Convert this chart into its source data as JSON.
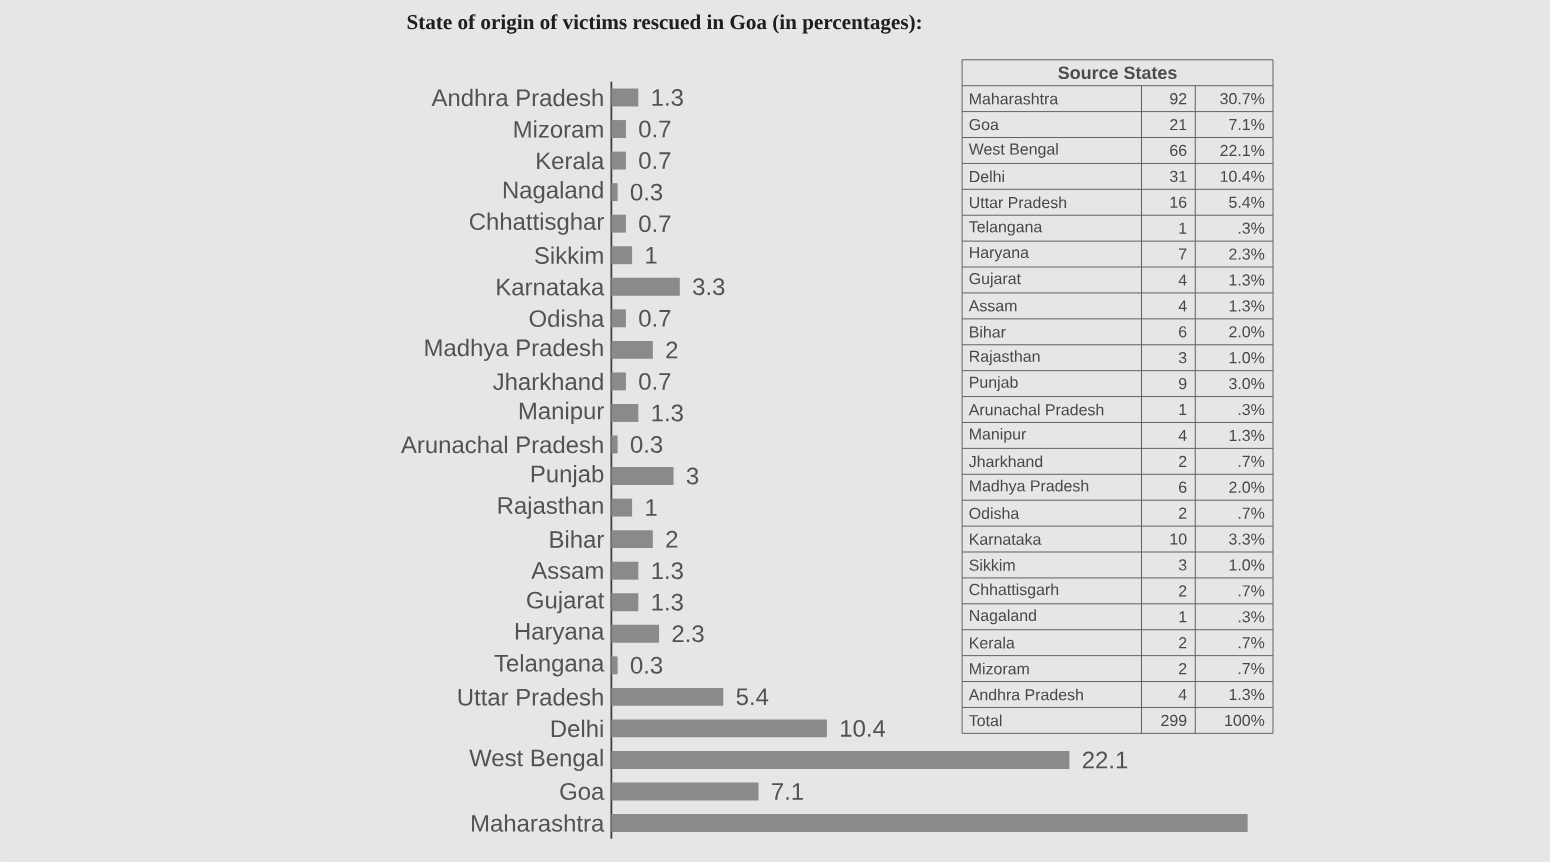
{
  "chart_data": [
    {
      "type": "bar",
      "orientation": "horizontal",
      "title": "State of origin of victims rescued in Goa (in percentages):",
      "categories": [
        "Andhra Pradesh",
        "Mizoram",
        "Kerala",
        "Nagaland",
        "Chhattisghar",
        "Sikkim",
        "Karnataka",
        "Odisha",
        "Madhya Pradesh",
        "Jharkhand",
        "Manipur",
        "Arunachal Pradesh",
        "Punjab",
        "Rajasthan",
        "Bihar",
        "Assam",
        "Gujarat",
        "Haryana",
        "Telangana",
        "Uttar Pradesh",
        "Delhi",
        "West Bengal",
        "Goa",
        "Maharashtra"
      ],
      "values": [
        1.3,
        0.7,
        0.7,
        0.3,
        0.7,
        1,
        3.3,
        0.7,
        2,
        0.7,
        1.3,
        0.3,
        3,
        1,
        2,
        1.3,
        1.3,
        2.3,
        0.3,
        5.4,
        10.4,
        22.1,
        7.1,
        30.7
      ],
      "value_labels": [
        "1.3",
        "0.7",
        "0.7",
        "0.3",
        "0.7",
        "1",
        "3.3",
        "0.7",
        "2",
        "0.7",
        "1.3",
        "0.3",
        "3",
        "1",
        "2",
        "1.3",
        "1.3",
        "2.3",
        "0.3",
        "5.4",
        "10.4",
        "22.1",
        "7.1",
        null
      ],
      "color": "#8a8a8a",
      "tick_labels": "y"
    },
    {
      "type": "other",
      "title": "Source States",
      "data_labels": true,
      "categories": [
        "Maharashtra",
        "Goa",
        "West Bengal",
        "Delhi",
        "Uttar Pradesh",
        "Telangana",
        "Haryana",
        "Gujarat",
        "Assam",
        "Bihar",
        "Rajasthan",
        "Punjab",
        "Arunachal Pradesh",
        "Manipur",
        "Jharkhand",
        "Madhya Pradesh",
        "Odisha",
        "Karnataka",
        "Sikkim",
        "Chhattisgarh",
        "Nagaland",
        "Kerala",
        "Mizoram",
        "Andhra Pradesh",
        "Total"
      ],
      "series": [
        {
          "values": [
            92,
            21,
            66,
            31,
            16,
            1,
            7,
            4,
            4,
            6,
            3,
            9,
            1,
            4,
            2,
            6,
            2,
            10,
            3,
            2,
            1,
            2,
            2,
            4,
            299
          ]
        },
        {
          "values": [
            30.7,
            7.1,
            22.1,
            10.4,
            5.4,
            0.3,
            2.3,
            1.3,
            1.3,
            2.0,
            1.0,
            3.0,
            0.3,
            1.3,
            0.7,
            2.0,
            0.7,
            3.3,
            1.0,
            0.7,
            0.3,
            0.7,
            0.7,
            1.3,
            100
          ],
          "value_labels": [
            "30.7%",
            "7.1%",
            "22.1%",
            "10.4%",
            "5.4%",
            ".3%",
            "2.3%",
            "1.3%",
            "1.3%",
            "2.0%",
            "1.0%",
            "3.0%",
            ".3%",
            "1.3%",
            ".7%",
            "2.0%",
            ".7%",
            "3.3%",
            "1.0%",
            ".7%",
            ".3%",
            ".7%",
            ".7%",
            "1.3%",
            "100%"
          ]
        }
      ]
    }
  ]
}
